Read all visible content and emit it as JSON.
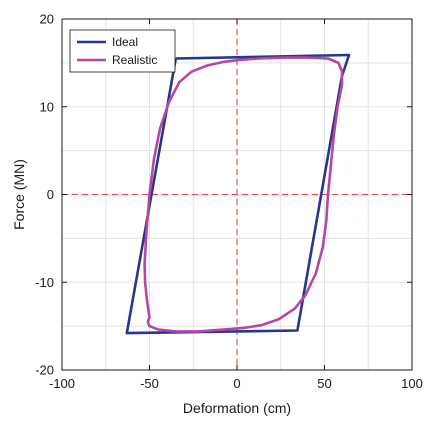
{
  "chart_data": {
    "type": "line",
    "title": "",
    "xlabel": "Deformation (cm)",
    "ylabel": "Force (MN)",
    "xlim": [
      -100,
      100
    ],
    "ylim": [
      -20,
      20
    ],
    "xticks": [
      -100,
      -50,
      0,
      50,
      100
    ],
    "yticks": [
      -20,
      -10,
      0,
      10,
      20
    ],
    "x_tick_labels": [
      "-100",
      "-50",
      "0",
      "50",
      "100"
    ],
    "y_tick_labels": [
      "-20",
      "-10",
      "0",
      "10",
      "20"
    ],
    "grid": true,
    "legend_position": "top-left",
    "reference_lines": {
      "x": 0,
      "y": 0,
      "color": "#e8474b",
      "style": "dashed"
    },
    "series": [
      {
        "name": "Ideal",
        "color": "#27368f",
        "points": [
          [
            -35,
            15.5
          ],
          [
            64,
            15.9
          ],
          [
            60,
            13.5
          ],
          [
            34.5,
            -15.5
          ],
          [
            -63,
            -15.8
          ],
          [
            -35,
            15.5
          ]
        ]
      },
      {
        "name": "Realistic",
        "color": "#b5489e",
        "points": [
          [
            -50,
            -14.0
          ],
          [
            -51.5,
            -12.0
          ],
          [
            -52.5,
            -10.0
          ],
          [
            -52.8,
            -8.0
          ],
          [
            -52.0,
            -5.0
          ],
          [
            -50.0,
            0.0
          ],
          [
            -47.5,
            4.0
          ],
          [
            -44.0,
            7.5
          ],
          [
            -39.0,
            10.5
          ],
          [
            -33.0,
            12.8
          ],
          [
            -26.0,
            14.0
          ],
          [
            -17.0,
            14.7
          ],
          [
            -8.0,
            15.1
          ],
          [
            0.0,
            15.3
          ],
          [
            12.0,
            15.5
          ],
          [
            28.0,
            15.6
          ],
          [
            40.0,
            15.6
          ],
          [
            52.0,
            15.5
          ],
          [
            58.0,
            15.0
          ],
          [
            60.0,
            14.0
          ],
          [
            60.0,
            12.5
          ],
          [
            57.5,
            10.0
          ],
          [
            55.5,
            7.0
          ],
          [
            53.5,
            3.0
          ],
          [
            52.0,
            0.0
          ],
          [
            51.0,
            -3.0
          ],
          [
            49.0,
            -6.0
          ],
          [
            45.0,
            -9.0
          ],
          [
            39.0,
            -11.5
          ],
          [
            33.0,
            -13.0
          ],
          [
            24.0,
            -14.2
          ],
          [
            14.0,
            -14.9
          ],
          [
            4.0,
            -15.2
          ],
          [
            -8.0,
            -15.4
          ],
          [
            -22.0,
            -15.6
          ],
          [
            -35.0,
            -15.6
          ],
          [
            -45.0,
            -15.4
          ],
          [
            -50.0,
            -15.0
          ],
          [
            -51.0,
            -14.5
          ],
          [
            -50.0,
            -14.0
          ]
        ]
      }
    ]
  }
}
